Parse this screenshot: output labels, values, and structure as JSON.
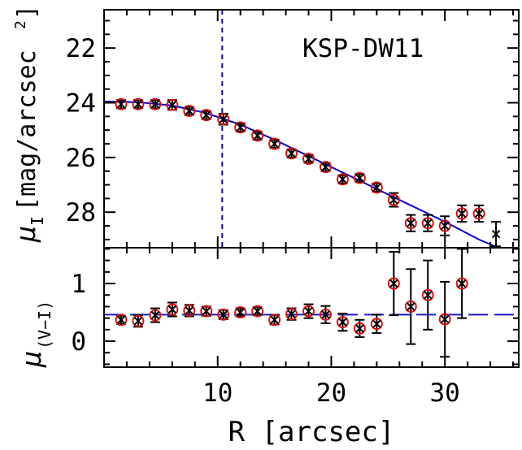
{
  "chart_data": [
    {
      "type": "scatter",
      "panel": "top",
      "annotation": "KSP-DW11",
      "ylabel_main": "μ",
      "ylabel_sub": "I",
      "ylabel_rest": "[mag/arcsec",
      "ylabel_sup": "2",
      "ylabel_close": "]",
      "xlim": [
        0,
        36.5
      ],
      "ylim": [
        29.3,
        20.6
      ],
      "y_inverted": true,
      "yticks": [
        22,
        24,
        26,
        28
      ],
      "ytick_labels": [
        "22",
        "24",
        "26",
        "28"
      ],
      "vline_x": 10.4,
      "series": [
        {
          "marker": "circle-cross",
          "colors": {
            "circle": "#e01010",
            "cross": "#000000"
          },
          "points": [
            {
              "x": 1.5,
              "y": 24.05,
              "err": 0.15
            },
            {
              "x": 3.0,
              "y": 24.05,
              "err": 0.15
            },
            {
              "x": 4.5,
              "y": 24.05,
              "err": 0.15
            },
            {
              "x": 6.0,
              "y": 24.08,
              "err": 0.18
            },
            {
              "x": 7.5,
              "y": 24.3,
              "err": 0.15
            },
            {
              "x": 9.0,
              "y": 24.45,
              "err": 0.15
            },
            {
              "x": 10.5,
              "y": 24.6,
              "err": 0.2
            },
            {
              "x": 12.0,
              "y": 24.9,
              "err": 0.15
            },
            {
              "x": 13.5,
              "y": 25.2,
              "err": 0.15
            },
            {
              "x": 15.0,
              "y": 25.5,
              "err": 0.15
            },
            {
              "x": 16.5,
              "y": 25.85,
              "err": 0.15
            },
            {
              "x": 18.0,
              "y": 26.05,
              "err": 0.15
            },
            {
              "x": 19.5,
              "y": 26.35,
              "err": 0.15
            },
            {
              "x": 21.0,
              "y": 26.8,
              "err": 0.15
            },
            {
              "x": 22.5,
              "y": 26.75,
              "err": 0.15
            },
            {
              "x": 24.0,
              "y": 27.1,
              "err": 0.15
            },
            {
              "x": 25.5,
              "y": 27.55,
              "err": 0.25
            },
            {
              "x": 27.0,
              "y": 28.4,
              "err": 0.3
            },
            {
              "x": 28.5,
              "y": 28.4,
              "err": 0.3
            },
            {
              "x": 30.0,
              "y": 28.5,
              "err": 0.35
            },
            {
              "x": 31.5,
              "y": 28.05,
              "err": 0.3
            },
            {
              "x": 33.0,
              "y": 28.05,
              "err": 0.3
            }
          ]
        },
        {
          "marker": "cross-only",
          "colors": {
            "cross": "#000000"
          },
          "points": [
            {
              "x": 34.5,
              "y": 28.8,
              "err": 0.45
            }
          ]
        }
      ],
      "fit_line": {
        "color": "#0000cc",
        "points": [
          {
            "x": 0.0,
            "y": 23.95
          },
          {
            "x": 3.0,
            "y": 23.98
          },
          {
            "x": 6.0,
            "y": 24.1
          },
          {
            "x": 9.0,
            "y": 24.38
          },
          {
            "x": 12.0,
            "y": 24.8
          },
          {
            "x": 15.0,
            "y": 25.35
          },
          {
            "x": 18.0,
            "y": 25.95
          },
          {
            "x": 21.0,
            "y": 26.55
          },
          {
            "x": 24.0,
            "y": 27.15
          },
          {
            "x": 27.0,
            "y": 27.75
          },
          {
            "x": 30.0,
            "y": 28.35
          },
          {
            "x": 33.0,
            "y": 29.0
          },
          {
            "x": 34.7,
            "y": 29.3
          }
        ]
      }
    },
    {
      "type": "scatter",
      "panel": "bottom",
      "ylabel_main": "μ",
      "ylabel_sub": "(V−I)",
      "xlabel": "R [arcsec]",
      "xlim": [
        0,
        36.5
      ],
      "ylim": [
        -0.45,
        1.62
      ],
      "xticks": [
        10,
        20,
        30
      ],
      "xtick_labels": [
        "10",
        "20",
        "30"
      ],
      "yticks": [
        0,
        1
      ],
      "ytick_labels": [
        "0",
        "1"
      ],
      "hline_y": 0.46,
      "series": [
        {
          "marker": "circle-cross",
          "colors": {
            "circle": "#e01010",
            "cross": "#000000"
          },
          "points": [
            {
              "x": 1.5,
              "y": 0.37,
              "err": 0.07
            },
            {
              "x": 3.0,
              "y": 0.35,
              "err": 0.1
            },
            {
              "x": 4.5,
              "y": 0.45,
              "err": 0.12
            },
            {
              "x": 6.0,
              "y": 0.55,
              "err": 0.12
            },
            {
              "x": 7.5,
              "y": 0.53,
              "err": 0.1
            },
            {
              "x": 9.0,
              "y": 0.52,
              "err": 0.08
            },
            {
              "x": 10.5,
              "y": 0.46,
              "err": 0.08
            },
            {
              "x": 12.0,
              "y": 0.5,
              "err": 0.07
            },
            {
              "x": 13.5,
              "y": 0.52,
              "err": 0.07
            },
            {
              "x": 15.0,
              "y": 0.37,
              "err": 0.08
            },
            {
              "x": 16.5,
              "y": 0.47,
              "err": 0.1
            },
            {
              "x": 18.0,
              "y": 0.52,
              "err": 0.12
            },
            {
              "x": 19.5,
              "y": 0.46,
              "err": 0.15
            },
            {
              "x": 21.0,
              "y": 0.33,
              "err": 0.15
            },
            {
              "x": 22.5,
              "y": 0.22,
              "err": 0.15
            },
            {
              "x": 24.0,
              "y": 0.3,
              "err": 0.16
            },
            {
              "x": 25.5,
              "y": 1.0,
              "err": 0.55
            },
            {
              "x": 27.0,
              "y": 0.6,
              "err": 0.65
            },
            {
              "x": 28.5,
              "y": 0.8,
              "err": 0.6
            },
            {
              "x": 30.0,
              "y": 0.38,
              "err": 0.65
            },
            {
              "x": 31.5,
              "y": 1.0,
              "err": 0.6
            }
          ]
        }
      ]
    }
  ]
}
